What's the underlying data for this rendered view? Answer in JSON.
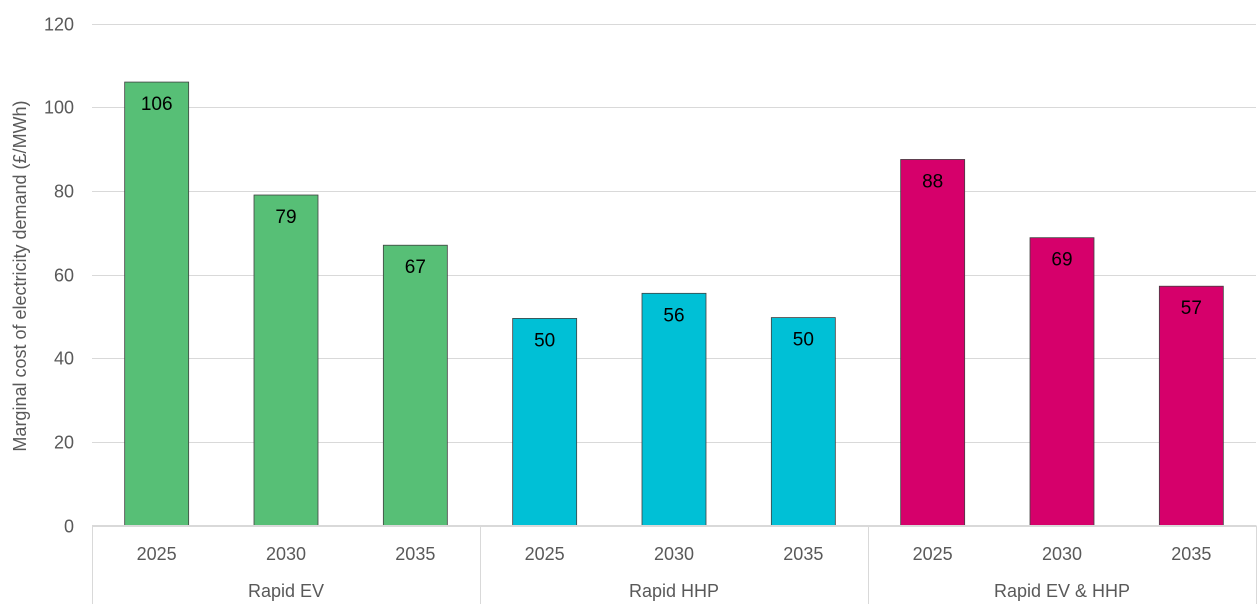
{
  "chart_data": {
    "type": "bar",
    "title": "",
    "ylabel": "Marginal cost of electricity demand (£/MWh)",
    "ylim": [
      0,
      120
    ],
    "yticks": [
      0,
      20,
      40,
      60,
      80,
      100,
      120
    ],
    "grid": true,
    "groups": [
      {
        "name": "Rapid EV",
        "color": "#57bf76",
        "categories": [
          "2025",
          "2030",
          "2035"
        ],
        "values": [
          106,
          79,
          67
        ],
        "labels": [
          "106",
          "79",
          "67"
        ]
      },
      {
        "name": "Rapid HHP",
        "color": "#00c0d6",
        "categories": [
          "2025",
          "2030",
          "2035"
        ],
        "values": [
          49.5,
          55.5,
          49.7
        ],
        "labels": [
          "50",
          "56",
          "50"
        ]
      },
      {
        "name": "Rapid EV & HHP",
        "color": "#d6006b",
        "categories": [
          "2025",
          "2030",
          "2035"
        ],
        "values": [
          87.5,
          68.8,
          57.2
        ],
        "labels": [
          "88",
          "69",
          "57"
        ]
      }
    ]
  }
}
